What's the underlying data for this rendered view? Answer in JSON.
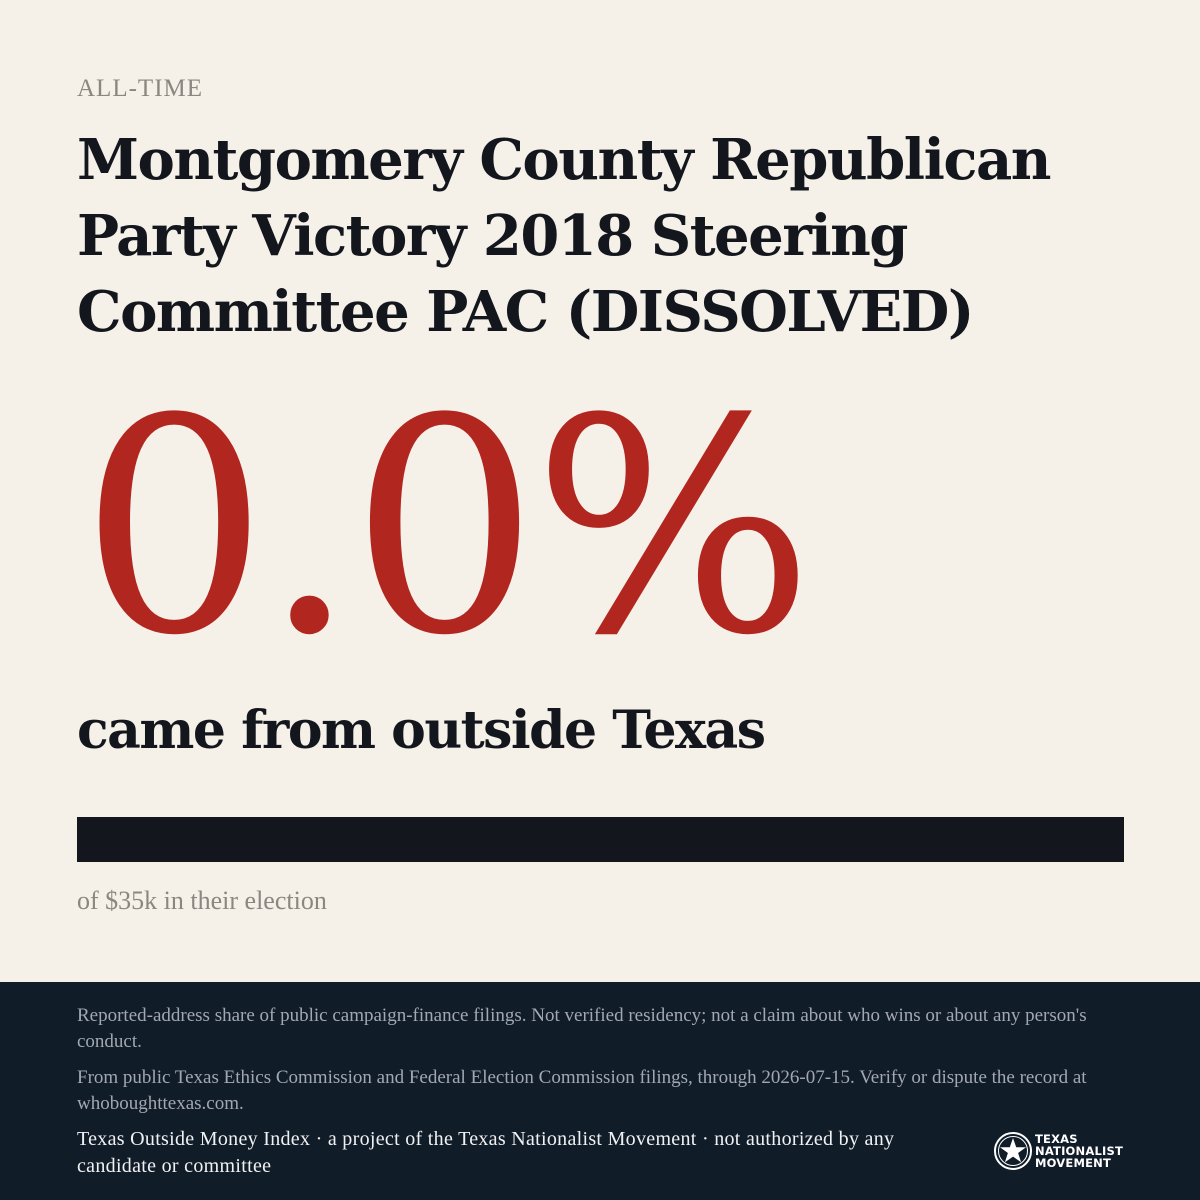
{
  "colors": {
    "background": "#f5f0e8",
    "accent_red": "#b22620",
    "ink": "#13171d",
    "muted": "#8a8780",
    "footer_bg": "#111c29"
  },
  "header": {
    "eyebrow": "ALL-TIME",
    "title": "Montgomery County Republican Party Victory 2018 Steering Committee PAC (DISSOLVED)"
  },
  "stat": {
    "percent_display": "0.0%",
    "percent_value": 0.0,
    "caption": "came from outside Texas"
  },
  "bar": {
    "fill_fraction": 0.0
  },
  "total_note": "of $35k in their election",
  "footer": {
    "disclaimer": "Reported-address share of public campaign-finance filings. Not verified residency; not a claim about who wins or about any person's conduct.",
    "source": "From public Texas Ethics Commission and Federal Election Commission filings, through 2026-07-15. Verify or dispute the record at whoboughttexas.com.",
    "attribution": "Texas Outside Money Index · a project of the Texas Nationalist Movement · not authorized by any candidate or committee"
  },
  "logo": {
    "icon": "star-seal-icon",
    "line1": "TEXAS",
    "line2": "NATIONALIST",
    "line3": "MOVEMENT"
  }
}
